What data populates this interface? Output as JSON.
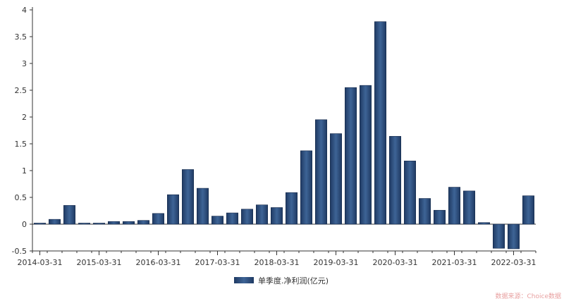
{
  "chart_data": {
    "type": "bar",
    "categories": [
      "2014-03-31",
      "2014-06-30",
      "2014-09-30",
      "2014-12-31",
      "2015-03-31",
      "2015-06-30",
      "2015-09-30",
      "2015-12-31",
      "2016-03-31",
      "2016-06-30",
      "2016-09-30",
      "2016-12-31",
      "2017-03-31",
      "2017-06-30",
      "2017-09-30",
      "2017-12-31",
      "2018-03-31",
      "2018-06-30",
      "2018-09-30",
      "2018-12-31",
      "2019-03-31",
      "2019-06-30",
      "2019-09-30",
      "2019-12-31",
      "2020-03-31",
      "2020-06-30",
      "2020-09-30",
      "2020-12-31",
      "2021-03-31",
      "2021-06-30",
      "2021-09-30",
      "2021-12-31",
      "2022-03-31",
      "2022-06-30"
    ],
    "series": [
      {
        "name": "单季度.净利润(亿元)",
        "values": [
          0.02,
          0.09,
          0.35,
          0.02,
          0.02,
          0.05,
          0.05,
          0.07,
          0.2,
          0.55,
          1.02,
          0.67,
          0.15,
          0.21,
          0.28,
          0.36,
          0.31,
          0.59,
          1.37,
          1.95,
          1.69,
          2.55,
          2.59,
          3.78,
          1.64,
          1.18,
          0.48,
          0.26,
          0.69,
          0.62,
          0.03,
          -0.45,
          -0.46,
          0.53
        ]
      }
    ],
    "x_tick_labels": [
      "2014-03-31",
      "2015-03-31",
      "2016-03-31",
      "2017-03-31",
      "2018-03-31",
      "2019-03-31",
      "2020-03-31",
      "2021-03-31",
      "2022-03-31"
    ],
    "y_ticks": [
      -0.5,
      0,
      0.5,
      1,
      1.5,
      2,
      2.5,
      3,
      3.5,
      4
    ],
    "y_tick_labels": [
      "-0.5",
      "0",
      "0.5",
      "1",
      "1.5",
      "2",
      "2.5",
      "3",
      "3.5",
      "4"
    ],
    "ylim": [
      -0.5,
      4
    ],
    "title": "",
    "xlabel": "",
    "ylabel": "",
    "grid": false,
    "legend_position": "bottom-center",
    "bar_color": "#1f3a63",
    "bar_color_light": "#3e6496",
    "source_text": "数据来源：Choice数据"
  }
}
